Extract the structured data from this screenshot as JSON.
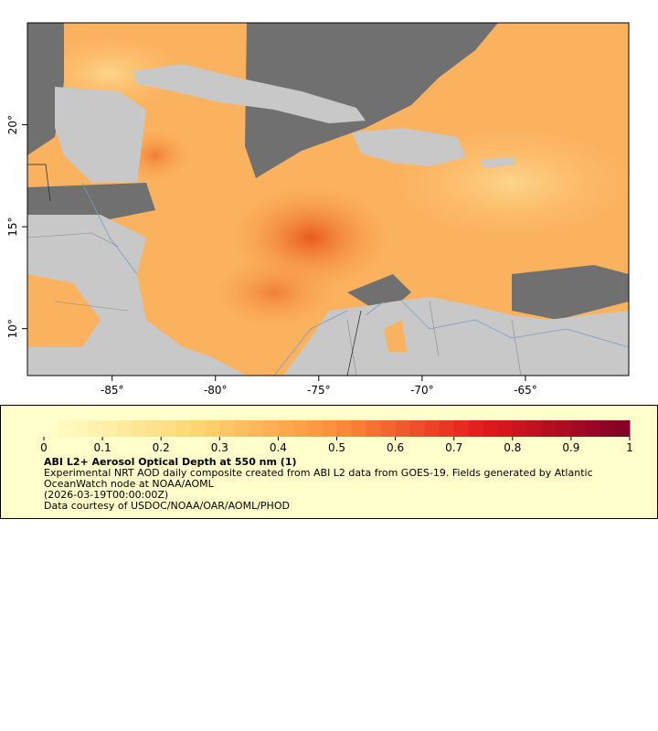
{
  "map": {
    "xlim": [
      -89.1,
      -60
    ],
    "ylim": [
      7.7,
      25
    ],
    "xticks": [
      {
        "value": -85,
        "label": "-85°"
      },
      {
        "value": -80,
        "label": "-80°"
      },
      {
        "value": -75,
        "label": "-75°"
      },
      {
        "value": -70,
        "label": "-70°"
      },
      {
        "value": -65,
        "label": "-65°"
      }
    ],
    "yticks": [
      {
        "value": 10,
        "label": "10°"
      },
      {
        "value": 15,
        "label": "15°"
      },
      {
        "value": 20,
        "label": "20°"
      }
    ]
  },
  "colorbar": {
    "range": [
      0,
      1
    ],
    "ticks": [
      0,
      0.1,
      0.2,
      0.3,
      0.4,
      0.5,
      0.6,
      0.7,
      0.8,
      0.9,
      1
    ],
    "colors": [
      "#ffffcc",
      "#fed976",
      "#fd8d3c",
      "#e31a1c",
      "#800026"
    ],
    "steps": 40
  },
  "legend": {
    "title": "ABI L2+ Aerosol Optical Depth at 550 nm (1)",
    "description": "Experimental NRT AOD daily composite created from ABI L2 data from GOES-19. Fields generated by Atlantic OceanWatch node at NOAA/AOML",
    "time": "(2026-03-19T00:00:00Z)",
    "credit": "Data courtesy of USDOC/NOAA/OAR/AOML/PHOD"
  }
}
